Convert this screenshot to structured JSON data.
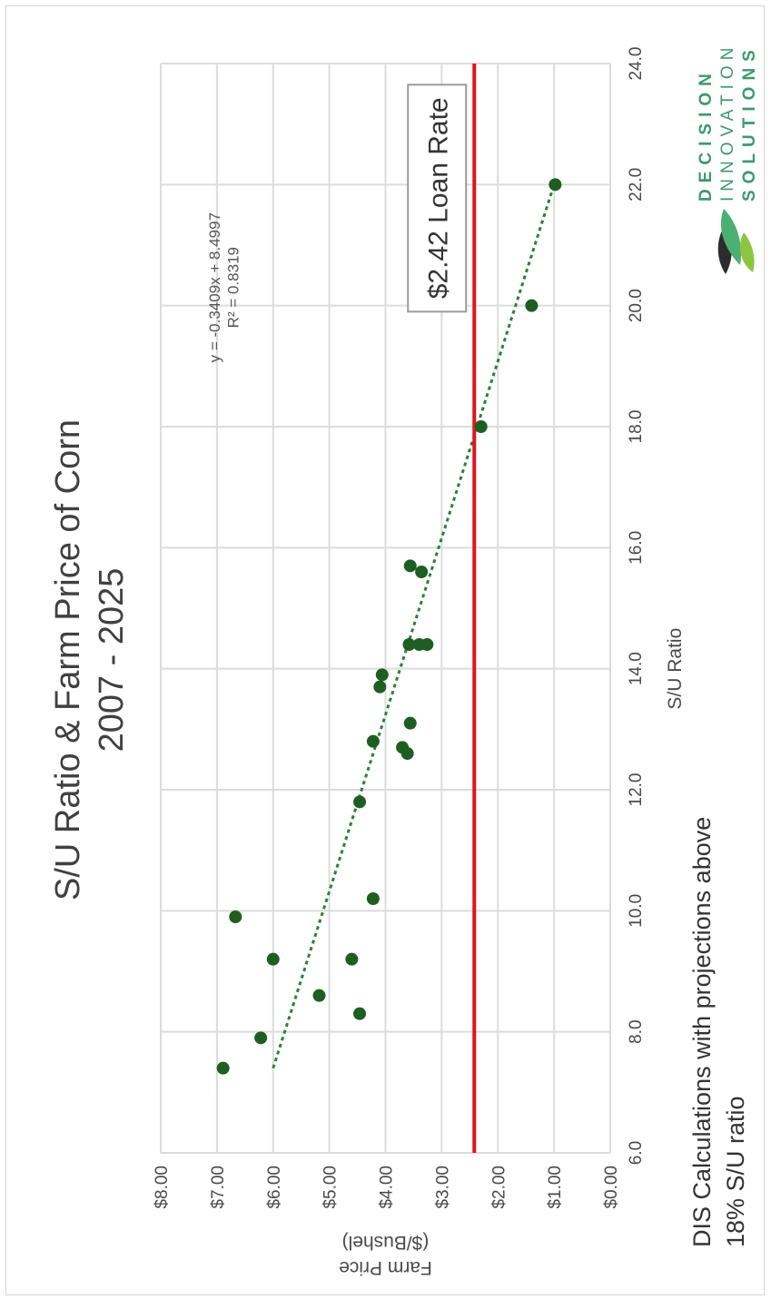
{
  "chart_data": {
    "type": "scatter",
    "title": "S/U Ratio & Farm Price of Corn",
    "subtitle": "2007 - 2025",
    "xlabel": "S/U Ratio",
    "ylabel": "Farm Price",
    "ylabel2": "($/Bushel)",
    "xlim": [
      6.0,
      24.0
    ],
    "ylim": [
      0.0,
      8.0
    ],
    "x_ticks": [
      "6.0",
      "8.0",
      "10.0",
      "12.0",
      "14.0",
      "16.0",
      "18.0",
      "20.0",
      "22.0",
      "24.0"
    ],
    "y_ticks": [
      "$0.00",
      "$1.00",
      "$2.00",
      "$3.00",
      "$4.00",
      "$5.00",
      "$6.00",
      "$7.00",
      "$8.00"
    ],
    "grid": true,
    "points": [
      {
        "x": 7.4,
        "y": 6.89
      },
      {
        "x": 7.9,
        "y": 6.22
      },
      {
        "x": 8.3,
        "y": 4.46
      },
      {
        "x": 8.6,
        "y": 5.18
      },
      {
        "x": 9.2,
        "y": 4.6
      },
      {
        "x": 9.2,
        "y": 6.0
      },
      {
        "x": 9.9,
        "y": 6.67
      },
      {
        "x": 10.2,
        "y": 4.22
      },
      {
        "x": 11.8,
        "y": 4.46
      },
      {
        "x": 12.6,
        "y": 3.61
      },
      {
        "x": 12.7,
        "y": 3.7
      },
      {
        "x": 12.8,
        "y": 4.22
      },
      {
        "x": 13.1,
        "y": 3.56
      },
      {
        "x": 13.7,
        "y": 4.1
      },
      {
        "x": 13.9,
        "y": 4.06
      },
      {
        "x": 14.4,
        "y": 3.58
      },
      {
        "x": 14.4,
        "y": 3.26
      },
      {
        "x": 14.4,
        "y": 3.4
      },
      {
        "x": 15.6,
        "y": 3.36
      },
      {
        "x": 15.7,
        "y": 3.56
      },
      {
        "x": 18.0,
        "y": 2.3
      },
      {
        "x": 20.0,
        "y": 1.4
      },
      {
        "x": 22.0,
        "y": 0.98
      }
    ],
    "trendline": {
      "x": [
        7.4,
        22.0
      ],
      "y": [
        6.0,
        1.0
      ],
      "label": "y = -0.3409x + 8.4997",
      "r2_label": "R² = 0.8319"
    },
    "reference_line": {
      "y": 2.42,
      "color": "#e0141e",
      "label": "$2.42 Loan Rate"
    },
    "point_color": "#1f5e22",
    "trend_color": "#2f7f3a",
    "grid_color": "#dcdcdc"
  },
  "footnote": {
    "line1": "DIS Calculations with projections above",
    "line2": "18% S/U ratio"
  },
  "logo": {
    "line1": "DECISION",
    "line2": "INNOVATION",
    "line3": "SOLUTIONS",
    "color": "#3d9a6a"
  }
}
